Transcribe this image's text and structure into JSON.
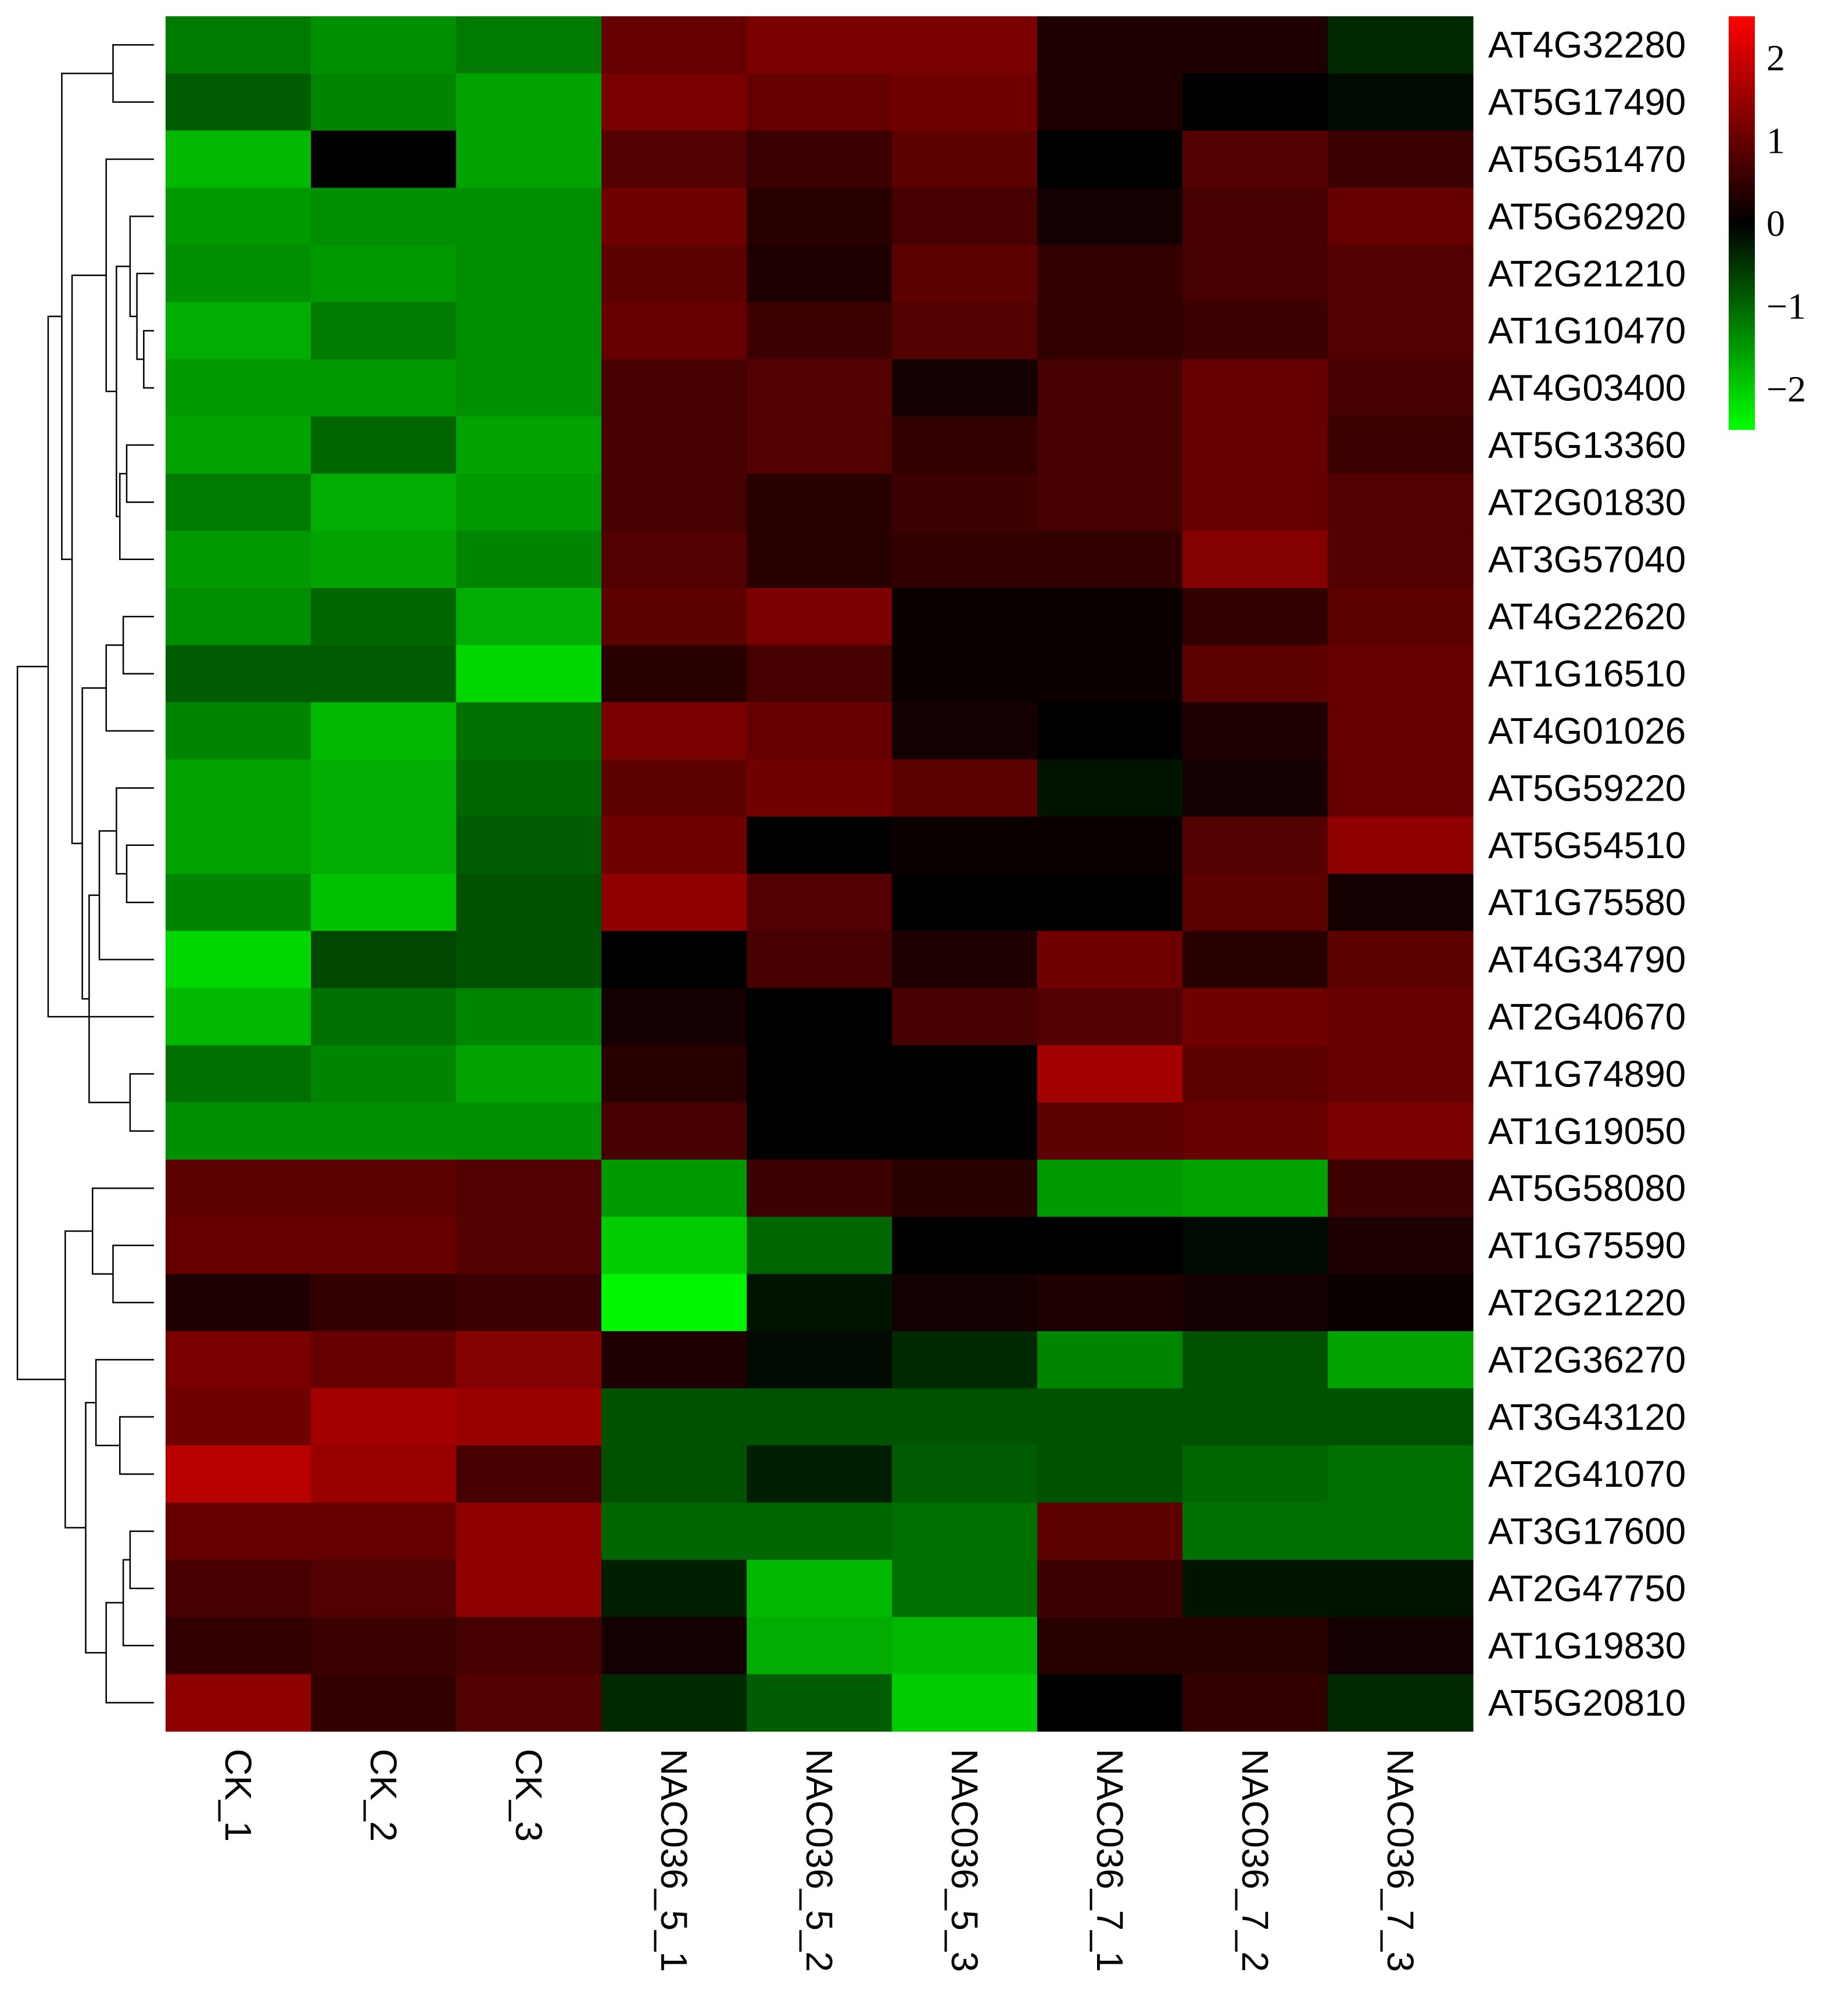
{
  "chart_data": {
    "type": "heatmap",
    "title": "",
    "xlabel": "",
    "ylabel": "",
    "columns": [
      "CK_1",
      "CK_2",
      "CK_3",
      "NAC036_5_1",
      "NAC036_5_2",
      "NAC036_5_3",
      "NAC036_7_1",
      "NAC036_7_2",
      "NAC036_7_3"
    ],
    "rows": [
      "AT4G32280",
      "AT5G17490",
      "AT5G51470",
      "AT5G62920",
      "AT2G21210",
      "AT1G10470",
      "AT4G03400",
      "AT5G13360",
      "AT2G01830",
      "AT3G57040",
      "AT4G22620",
      "AT1G16510",
      "AT4G01026",
      "AT5G59220",
      "AT5G54510",
      "AT1G75580",
      "AT4G34790",
      "AT2G40670",
      "AT1G74890",
      "AT1G19050",
      "AT5G58080",
      "AT1G75590",
      "AT2G21220",
      "AT2G36270",
      "AT3G43120",
      "AT2G41070",
      "AT3G17600",
      "AT2G47750",
      "AT1G19830",
      "AT5G20810"
    ],
    "values": [
      [
        -1.2,
        -1.4,
        -1.2,
        1.0,
        1.2,
        1.2,
        0.3,
        0.3,
        -0.4
      ],
      [
        -0.9,
        -1.3,
        -1.6,
        1.2,
        1.0,
        1.1,
        0.3,
        0.0,
        -0.1
      ],
      [
        -1.8,
        0.0,
        -1.6,
        0.8,
        0.6,
        0.9,
        0.0,
        0.8,
        0.6
      ],
      [
        -1.5,
        -1.4,
        -1.4,
        1.1,
        0.4,
        0.7,
        0.2,
        0.7,
        1.0
      ],
      [
        -1.4,
        -1.5,
        -1.4,
        0.9,
        0.3,
        0.9,
        0.5,
        0.7,
        0.8
      ],
      [
        -1.7,
        -1.2,
        -1.4,
        1.0,
        0.6,
        0.8,
        0.5,
        0.6,
        0.8
      ],
      [
        -1.5,
        -1.5,
        -1.4,
        0.7,
        0.8,
        0.2,
        0.7,
        1.0,
        0.7
      ],
      [
        -1.6,
        -1.0,
        -1.6,
        0.7,
        0.8,
        0.5,
        0.7,
        1.0,
        0.6
      ],
      [
        -1.2,
        -1.7,
        -1.5,
        0.7,
        0.4,
        0.6,
        0.7,
        1.0,
        0.8
      ],
      [
        -1.5,
        -1.6,
        -1.3,
        0.8,
        0.4,
        0.5,
        0.5,
        1.3,
        0.8
      ],
      [
        -1.4,
        -1.0,
        -1.7,
        0.9,
        1.2,
        0.1,
        0.1,
        0.5,
        0.9
      ],
      [
        -0.9,
        -0.9,
        -2.1,
        0.4,
        0.7,
        0.1,
        0.1,
        0.9,
        1.0
      ],
      [
        -1.3,
        -1.8,
        -1.1,
        1.2,
        1.0,
        0.2,
        0.0,
        0.3,
        1.0
      ],
      [
        -1.6,
        -1.7,
        -1.0,
        0.9,
        1.1,
        0.9,
        -0.2,
        0.2,
        1.0
      ],
      [
        -1.6,
        -1.7,
        -0.9,
        1.1,
        0.0,
        0.1,
        0.1,
        0.8,
        1.4
      ],
      [
        -1.3,
        -1.9,
        -0.8,
        1.4,
        0.8,
        0.0,
        0.0,
        0.9,
        0.2
      ],
      [
        -2.1,
        -0.7,
        -0.8,
        0.0,
        0.7,
        0.3,
        1.1,
        0.4,
        0.9
      ],
      [
        -1.8,
        -1.1,
        -1.3,
        0.2,
        0.0,
        0.7,
        0.8,
        1.1,
        1.0
      ],
      [
        -1.1,
        -1.3,
        -1.6,
        0.4,
        0.0,
        0.0,
        1.6,
        0.9,
        1.0
      ],
      [
        -1.4,
        -1.4,
        -1.4,
        0.7,
        0.0,
        0.0,
        0.9,
        1.0,
        1.2
      ],
      [
        0.9,
        0.9,
        0.8,
        -1.5,
        0.6,
        0.4,
        -1.5,
        -1.6,
        0.6
      ],
      [
        1.0,
        1.0,
        0.8,
        -2.0,
        -1.0,
        0.0,
        0.0,
        -0.1,
        0.3
      ],
      [
        0.3,
        0.5,
        0.6,
        -2.4,
        -0.2,
        0.2,
        0.3,
        0.2,
        0.1
      ],
      [
        1.2,
        1.0,
        1.3,
        0.3,
        -0.1,
        -0.4,
        -1.3,
        -0.8,
        -1.6
      ],
      [
        1.1,
        1.6,
        1.5,
        -0.8,
        -0.8,
        -0.8,
        -0.8,
        -0.8,
        -0.8
      ],
      [
        1.8,
        1.5,
        0.7,
        -0.8,
        -0.3,
        -0.9,
        -0.8,
        -1.0,
        -1.1
      ],
      [
        1.0,
        1.0,
        1.4,
        -1.0,
        -1.0,
        -1.1,
        0.9,
        -1.1,
        -1.1
      ],
      [
        0.7,
        0.8,
        1.4,
        -0.3,
        -1.8,
        -1.1,
        0.6,
        -0.2,
        -0.2
      ],
      [
        0.5,
        0.6,
        0.7,
        0.2,
        -1.7,
        -1.8,
        0.4,
        0.4,
        0.2
      ],
      [
        1.4,
        0.5,
        0.8,
        -0.4,
        -0.9,
        -2.0,
        0.0,
        0.5,
        -0.4
      ]
    ],
    "color_scale": {
      "min": -2.5,
      "max": 2.5,
      "low_color": "#00ff00",
      "mid_color": "#000000",
      "high_color": "#ff0000",
      "ticks": [
        2,
        1,
        0,
        -1,
        -2
      ],
      "tick_labels": [
        "2",
        "1",
        "0",
        "−1",
        "−2"
      ]
    },
    "dendrogram": {
      "side": "left",
      "merges": [
        [
          0,
          1,
          0.6
        ],
        [
          5,
          6,
          0.15
        ],
        [
          4,
          31,
          0.25
        ],
        [
          3,
          32,
          0.35
        ],
        [
          7,
          8,
          0.4
        ],
        [
          34,
          9,
          0.5
        ],
        [
          33,
          35,
          0.55
        ],
        [
          2,
          36,
          0.7
        ],
        [
          10,
          11,
          0.45
        ],
        [
          38,
          12,
          0.7
        ],
        [
          14,
          15,
          0.4
        ],
        [
          13,
          40,
          0.55
        ],
        [
          41,
          16,
          0.8
        ],
        [
          18,
          19,
          0.35
        ],
        [
          42,
          43,
          0.95
        ],
        [
          39,
          44,
          1.05
        ],
        [
          37,
          45,
          1.2
        ],
        [
          30,
          46,
          1.35
        ],
        [
          17,
          47,
          1.55
        ],
        [
          21,
          22,
          0.6
        ],
        [
          20,
          49,
          0.9
        ],
        [
          24,
          25,
          0.5
        ],
        [
          23,
          51,
          0.85
        ],
        [
          26,
          27,
          0.35
        ],
        [
          53,
          28,
          0.45
        ],
        [
          54,
          29,
          0.7
        ],
        [
          52,
          55,
          1.0
        ],
        [
          50,
          56,
          1.3
        ],
        [
          48,
          57,
          2.0
        ]
      ],
      "max_height": 2.0
    }
  }
}
